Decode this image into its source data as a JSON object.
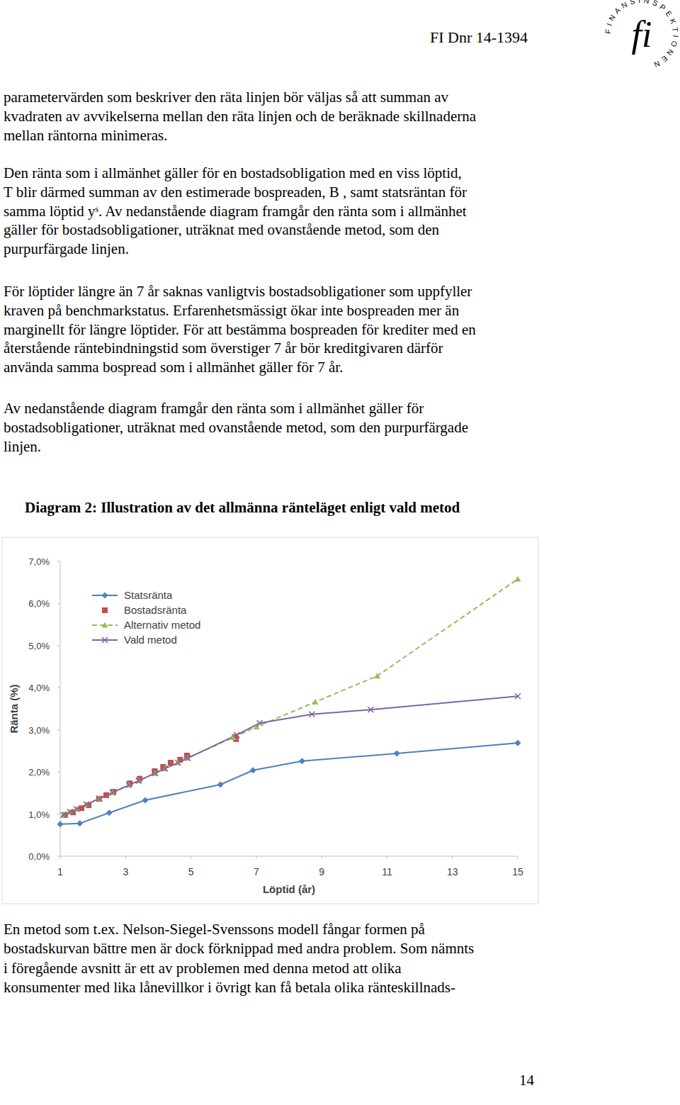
{
  "header": {
    "ref": "FI Dnr 14-1394"
  },
  "logo": {
    "text": "FINANSINSPEKTIONEN",
    "mark": "fi"
  },
  "paragraphs_before": [
    [
      "parametervärden som beskriver den räta linjen bör väljas så att summan av",
      "kvadraten av avvikelserna mellan den räta linjen och de beräknade skillnaderna",
      "mellan räntorna minimeras."
    ],
    [
      "Den ränta som i allmänhet gäller för en bostadsobligation med en viss löptid,",
      "T  blir därmed summan av den estimerade bospreaden, B  , samt statsräntan för",
      "samma löptid yˢ. Av nedanstående diagram framgår den ränta som i allmänhet",
      "gäller för bostadsobligationer, uträknat med ovanstående metod, som den",
      "purpurfärgade linjen."
    ],
    [
      "För löptider längre än 7 år saknas vanligtvis bostadsobligationer som uppfyller",
      "kraven på benchmarkstatus. Erfarenhetsmässigt ökar inte bospreaden mer än",
      "marginellt för längre löptider. För att bestämma bospreaden för krediter med en",
      "återstående räntebindningstid som överstiger 7 år bör kreditgivaren därför",
      "använda samma bospread som i allmänhet gäller för 7 år."
    ],
    [
      "Av nedanstående diagram framgår den ränta som i allmänhet gäller för",
      "bostadsobligationer, uträknat med ovanstående metod, som den purpurfärgade",
      "linjen."
    ]
  ],
  "chart_data": {
    "type": "line",
    "title": "Diagram 2: Illustration av det allmänna ränteläget enligt vald metod",
    "x_label": "Löptid (år)",
    "y_label": "Ränta (%)",
    "xlim": [
      1,
      15
    ],
    "xticks": [
      1,
      3,
      5,
      7,
      9,
      11,
      13,
      15
    ],
    "ylim": [
      0,
      7
    ],
    "yticks": [
      {
        "value": 0,
        "label": "0,0%"
      },
      {
        "value": 1,
        "label": "1,0%"
      },
      {
        "value": 2,
        "label": "2,0%"
      },
      {
        "value": 3,
        "label": "3,0%"
      },
      {
        "value": 4,
        "label": "4,0%"
      },
      {
        "value": 5,
        "label": "5,0%"
      },
      {
        "value": 6,
        "label": "6,0%"
      },
      {
        "value": 7,
        "label": "7,0%"
      }
    ],
    "grid": false,
    "legend": "upper left",
    "series": [
      {
        "name": "Statsränta",
        "color": "#4f81bd",
        "marker": "diamond",
        "line_style": "solid",
        "x": [
          1,
          1.6,
          2.5,
          3.6,
          5.9,
          6.9,
          8.4,
          11.3,
          15
        ],
        "values": [
          0.76,
          0.78,
          1.03,
          1.33,
          1.7,
          2.04,
          2.26,
          2.44,
          2.69
        ]
      },
      {
        "name": "Bostadsränta",
        "color": "#c0504d",
        "marker": "square",
        "line_style": "none",
        "x": [
          1.15,
          1.39,
          1.65,
          1.87,
          2.19,
          2.41,
          2.63,
          3.13,
          3.43,
          3.89,
          4.15,
          4.38,
          4.67,
          4.88,
          6.34,
          6.38
        ],
        "values": [
          0.98,
          1.04,
          1.14,
          1.21,
          1.36,
          1.45,
          1.53,
          1.73,
          1.84,
          2.02,
          2.12,
          2.22,
          2.29,
          2.39,
          2.83,
          2.78
        ]
      },
      {
        "name": "Alternativ metod",
        "color": "#9bbb59",
        "marker": "triangle",
        "line_style": "dashed",
        "x": [
          1.1,
          1.3,
          1.5,
          1.8,
          2.2,
          2.6,
          3.1,
          3.4,
          3.9,
          4.2,
          4.6,
          4.9,
          6.3,
          7.0,
          8.8,
          10.7,
          15
        ],
        "values": [
          0.98,
          1.05,
          1.12,
          1.23,
          1.37,
          1.51,
          1.69,
          1.79,
          1.97,
          2.08,
          2.22,
          2.33,
          2.82,
          3.07,
          3.66,
          4.28,
          6.58
        ]
      },
      {
        "name": "Vald metod",
        "color": "#8064a2",
        "marker": "x",
        "line_style": "solid",
        "x": [
          1.1,
          1.3,
          1.5,
          1.8,
          2.2,
          2.6,
          3.1,
          3.4,
          3.9,
          4.2,
          4.6,
          4.9,
          6.4,
          7.1,
          8.7,
          10.5,
          15
        ],
        "values": [
          0.98,
          1.05,
          1.12,
          1.23,
          1.37,
          1.51,
          1.69,
          1.79,
          1.97,
          2.08,
          2.22,
          2.33,
          2.88,
          3.16,
          3.37,
          3.48,
          3.8
        ]
      }
    ]
  },
  "paragraphs_after": [
    [
      "En metod som t.ex. Nelson-Siegel-Svenssons modell fångar formen på",
      "bostadskurvan bättre men är dock förknippad med andra problem. Som nämnts",
      "i föregående avsnitt är ett av problemen med denna metod att olika",
      "konsumenter med lika lånevillkor i övrigt kan få betala olika ränteskillnads-"
    ]
  ],
  "page_number": "14"
}
